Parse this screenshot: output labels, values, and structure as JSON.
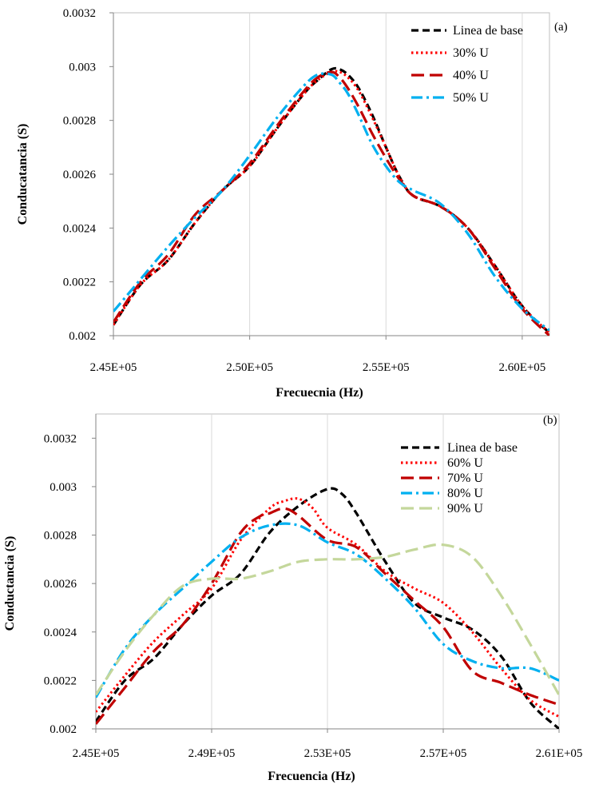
{
  "chart_data": [
    {
      "type": "line",
      "panel_label": "(a)",
      "xlabel": "Frecuecnia  (Hz)",
      "ylabel": "Conducatancia (S)",
      "xlim": [
        245000,
        261000
      ],
      "ylim": [
        0.002,
        0.0032
      ],
      "x_ticks": [
        245000,
        250000,
        255000,
        260000
      ],
      "x_tick_labels": [
        "2.45E+05",
        "2.50E+05",
        "2.55E+05",
        "2.60E+05"
      ],
      "y_ticks": [
        0.002,
        0.0022,
        0.0024,
        0.0026,
        0.0028,
        0.003,
        0.0032
      ],
      "y_tick_labels": [
        "0.002",
        "0.0022",
        "0.0024",
        "0.0026",
        "0.0028",
        "0.003",
        "0.0032"
      ],
      "grid": "vertical",
      "legend": "top-right",
      "series": [
        {
          "name": "Linea de base",
          "color": "#000000",
          "dash": "dash",
          "x": [
            245000,
            246000,
            247000,
            248000,
            249000,
            250000,
            251000,
            252000,
            252500,
            253000,
            253300,
            253600,
            254000,
            254500,
            255000,
            255500,
            256000,
            257000,
            258000,
            259000,
            260000,
            261000
          ],
          "y": [
            0.00204,
            0.00219,
            0.00228,
            0.00242,
            0.00254,
            0.00263,
            0.00277,
            0.0029,
            0.00295,
            0.00299,
            0.00299,
            0.00297,
            0.00292,
            0.00282,
            0.0027,
            0.00259,
            0.00252,
            0.00248,
            0.0024,
            0.00226,
            0.00211,
            0.00201
          ]
        },
        {
          "name": "30% U",
          "color": "#ff0000",
          "dash": "dot",
          "x": [
            245000,
            246000,
            247000,
            248000,
            249000,
            250000,
            251000,
            252000,
            252500,
            253000,
            253300,
            253600,
            254000,
            254500,
            255000,
            255500,
            256000,
            257000,
            258000,
            259000,
            260000,
            261000
          ],
          "y": [
            0.00204,
            0.00219,
            0.00228,
            0.00242,
            0.00254,
            0.00263,
            0.00277,
            0.0029,
            0.00295,
            0.00298,
            0.00298,
            0.00296,
            0.00291,
            0.00281,
            0.0027,
            0.00259,
            0.00252,
            0.00248,
            0.0024,
            0.00226,
            0.00211,
            0.00201
          ]
        },
        {
          "name": "40% U",
          "color": "#c00000",
          "dash": "longdash",
          "x": [
            245000,
            246000,
            247000,
            248000,
            249000,
            250000,
            251000,
            252000,
            252500,
            253000,
            253300,
            253600,
            254000,
            254500,
            255000,
            255500,
            256000,
            257000,
            258000,
            259000,
            260000,
            261000
          ],
          "y": [
            0.00205,
            0.0022,
            0.0023,
            0.00245,
            0.00254,
            0.00264,
            0.00278,
            0.00291,
            0.00296,
            0.00298,
            0.00296,
            0.00292,
            0.00285,
            0.00275,
            0.00266,
            0.00258,
            0.00252,
            0.00248,
            0.0024,
            0.00225,
            0.0021,
            0.002
          ]
        },
        {
          "name": "50% U",
          "color": "#00b0f0",
          "dash": "dashdot",
          "x": [
            245000,
            246000,
            247000,
            248000,
            249000,
            250000,
            251000,
            252000,
            252500,
            253000,
            253300,
            253600,
            254000,
            254500,
            255000,
            255500,
            256000,
            257000,
            258000,
            259000,
            260000,
            261000
          ],
          "y": [
            0.00209,
            0.00221,
            0.00233,
            0.00244,
            0.00254,
            0.00267,
            0.00281,
            0.00293,
            0.00297,
            0.00297,
            0.00294,
            0.0029,
            0.00282,
            0.00271,
            0.00263,
            0.00257,
            0.00254,
            0.00249,
            0.00238,
            0.00222,
            0.0021,
            0.00202
          ]
        }
      ]
    },
    {
      "type": "line",
      "panel_label": "(b)",
      "xlabel": "Frecuencia (Hz)",
      "ylabel": "Conductancia (S)",
      "xlim": [
        245000,
        261000
      ],
      "ylim": [
        0.002,
        0.0033
      ],
      "x_ticks": [
        245000,
        249000,
        253000,
        257000,
        261000
      ],
      "x_tick_labels": [
        "2.45E+05",
        "2.49E+05",
        "2.53E+05",
        "2.57E+05",
        "2.61E+05"
      ],
      "y_ticks": [
        0.002,
        0.0022,
        0.0024,
        0.0026,
        0.0028,
        0.003,
        0.0032
      ],
      "y_tick_labels": [
        "0.002",
        "0.0022",
        "0.0024",
        "0.0026",
        "0.0028",
        "0.003",
        "0.0032"
      ],
      "grid": "vertical",
      "legend": "top-right",
      "series": [
        {
          "name": "Linea de base",
          "color": "#000000",
          "dash": "dash",
          "x": [
            245000,
            246000,
            247000,
            248000,
            249000,
            250000,
            251000,
            252000,
            253000,
            253500,
            254000,
            255000,
            256000,
            257000,
            258000,
            259000,
            260000,
            261000
          ],
          "y": [
            0.00203,
            0.0022,
            0.00229,
            0.00243,
            0.00255,
            0.00264,
            0.00281,
            0.00292,
            0.00299,
            0.00297,
            0.00289,
            0.00269,
            0.00252,
            0.00246,
            0.00241,
            0.0023,
            0.00211,
            0.002
          ]
        },
        {
          "name": "60% U",
          "color": "#ff0000",
          "dash": "dot",
          "x": [
            245000,
            246000,
            247000,
            248000,
            249000,
            250000,
            251000,
            251500,
            252000,
            252500,
            253000,
            254000,
            255000,
            256000,
            257000,
            258000,
            259000,
            260000,
            261000
          ],
          "y": [
            0.00207,
            0.00222,
            0.00236,
            0.00247,
            0.00258,
            0.00278,
            0.00291,
            0.00294,
            0.00295,
            0.00291,
            0.00283,
            0.00276,
            0.00265,
            0.00258,
            0.00252,
            0.0024,
            0.00225,
            0.00212,
            0.00205
          ]
        },
        {
          "name": "70% U",
          "color": "#c00000",
          "dash": "longdash",
          "x": [
            245000,
            246000,
            247000,
            248000,
            249000,
            250000,
            250700,
            251000,
            251500,
            252000,
            253000,
            254000,
            255000,
            256000,
            257000,
            258000,
            259000,
            260000,
            261000
          ],
          "y": [
            0.00202,
            0.00217,
            0.00232,
            0.00243,
            0.0026,
            0.00281,
            0.00288,
            0.00289,
            0.00291,
            0.00288,
            0.00278,
            0.00275,
            0.00264,
            0.00253,
            0.00242,
            0.00224,
            0.00219,
            0.00214,
            0.0021
          ]
        },
        {
          "name": "80% U",
          "color": "#00b0f0",
          "dash": "dashdot",
          "x": [
            245000,
            246000,
            247000,
            248000,
            249000,
            250000,
            251000,
            252000,
            253000,
            254000,
            255000,
            256000,
            257000,
            258000,
            259000,
            260000,
            261000
          ],
          "y": [
            0.00213,
            0.00233,
            0.00247,
            0.00258,
            0.00269,
            0.00279,
            0.00284,
            0.00284,
            0.00277,
            0.00272,
            0.00262,
            0.0025,
            0.00235,
            0.00228,
            0.00225,
            0.00225,
            0.0022
          ]
        },
        {
          "name": "90% U",
          "color": "#c4d79b",
          "dash": "longdash",
          "x": [
            245000,
            246000,
            247000,
            248000,
            249000,
            250000,
            251000,
            252000,
            253000,
            254000,
            255000,
            256000,
            257000,
            258000,
            259000,
            260000,
            261000
          ],
          "y": [
            0.00214,
            0.00232,
            0.00247,
            0.00259,
            0.00262,
            0.00262,
            0.00265,
            0.00269,
            0.0027,
            0.0027,
            0.00271,
            0.00274,
            0.00276,
            0.00271,
            0.00255,
            0.00235,
            0.00214
          ]
        }
      ]
    }
  ]
}
